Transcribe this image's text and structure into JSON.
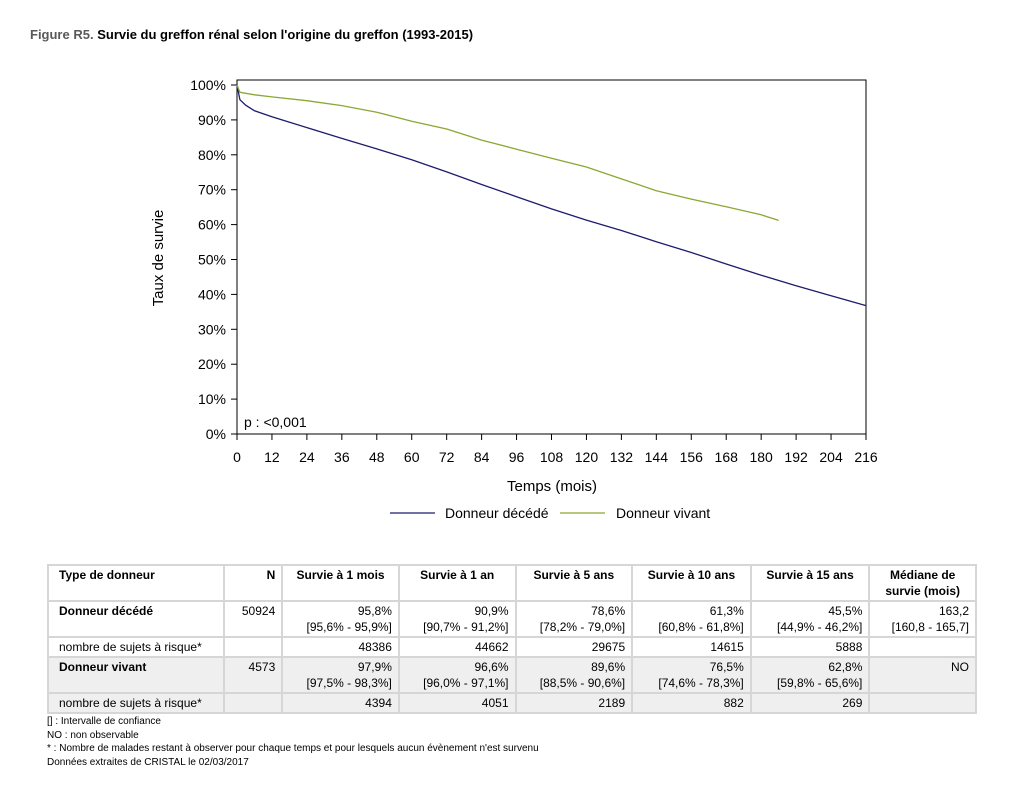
{
  "figure": {
    "label": "Figure R5.",
    "title": "Survie du greffon rénal selon l'origine du greffon (1993-2015)"
  },
  "chart_data": {
    "type": "line",
    "xlabel": "Temps (mois)",
    "ylabel": "Taux de survie",
    "xlim": [
      0,
      216
    ],
    "ylim": [
      0,
      100
    ],
    "x_ticks": [
      0,
      12,
      24,
      36,
      48,
      60,
      72,
      84,
      96,
      108,
      120,
      132,
      144,
      156,
      168,
      180,
      192,
      204,
      216
    ],
    "y_ticks": [
      "0%",
      "10%",
      "20%",
      "30%",
      "40%",
      "50%",
      "60%",
      "70%",
      "80%",
      "90%",
      "100%"
    ],
    "annotation": "p : <0,001",
    "legend_position": "bottom",
    "grid": false,
    "series": [
      {
        "name": "Donneur décédé",
        "color": "#1c1c6e",
        "x": [
          0,
          1,
          3,
          6,
          12,
          24,
          36,
          48,
          60,
          72,
          84,
          96,
          108,
          120,
          132,
          144,
          156,
          168,
          180,
          192,
          204,
          216
        ],
        "y": [
          100,
          95.8,
          94.2,
          92.6,
          90.9,
          87.8,
          84.7,
          81.7,
          78.6,
          75.1,
          71.5,
          68.0,
          64.5,
          61.3,
          58.3,
          55.1,
          52.0,
          48.7,
          45.5,
          42.5,
          39.6,
          36.8
        ]
      },
      {
        "name": "Donneur vivant",
        "color": "#8aa832",
        "x": [
          0,
          1,
          6,
          12,
          24,
          36,
          48,
          60,
          72,
          84,
          96,
          108,
          120,
          132,
          144,
          156,
          168,
          180,
          186
        ],
        "y": [
          100,
          97.9,
          97.2,
          96.6,
          95.5,
          94.1,
          92.2,
          89.6,
          87.4,
          84.2,
          81.6,
          79.0,
          76.5,
          73.1,
          69.7,
          67.3,
          65.1,
          62.8,
          61.2
        ]
      }
    ]
  },
  "table": {
    "headers": [
      "Type de donneur",
      "N",
      "Survie à 1 mois",
      "Survie à 1 an",
      "Survie à 5 ans",
      "Survie à 10 ans",
      "Survie à 15 ans",
      "Médiane de survie (mois)"
    ],
    "rows": [
      {
        "type": "Donneur décédé",
        "n": "50924",
        "cells": [
          {
            "value": "95,8%",
            "ci": "[95,6% - 95,9%]"
          },
          {
            "value": "90,9%",
            "ci": "[90,7% - 91,2%]"
          },
          {
            "value": "78,6%",
            "ci": "[78,2% - 79,0%]"
          },
          {
            "value": "61,3%",
            "ci": "[60,8% - 61,8%]"
          },
          {
            "value": "45,5%",
            "ci": "[44,9% - 46,2%]"
          }
        ],
        "median": {
          "value": "163,2",
          "ci": "[160,8 - 165,7]"
        },
        "risk_label": "nombre de sujets à risque*",
        "risk": [
          "48386",
          "44662",
          "29675",
          "14615",
          "5888"
        ]
      },
      {
        "type": "Donneur vivant",
        "n": "4573",
        "cells": [
          {
            "value": "97,9%",
            "ci": "[97,5% - 98,3%]"
          },
          {
            "value": "96,6%",
            "ci": "[96,0% - 97,1%]"
          },
          {
            "value": "89,6%",
            "ci": "[88,5% - 90,6%]"
          },
          {
            "value": "76,5%",
            "ci": "[74,6% - 78,3%]"
          },
          {
            "value": "62,8%",
            "ci": "[59,8% - 65,6%]"
          }
        ],
        "median": {
          "value": "NO",
          "ci": ""
        },
        "risk_label": "nombre de sujets à risque*",
        "risk": [
          "4394",
          "4051",
          "2189",
          "882",
          "269"
        ]
      }
    ]
  },
  "notes": [
    "[] : Intervalle de confiance",
    "NO : non observable",
    "* : Nombre de malades restant à observer pour chaque temps et pour lesquels aucun évènement n'est survenu",
    "Données extraites de CRISTAL le 02/03/2017"
  ]
}
